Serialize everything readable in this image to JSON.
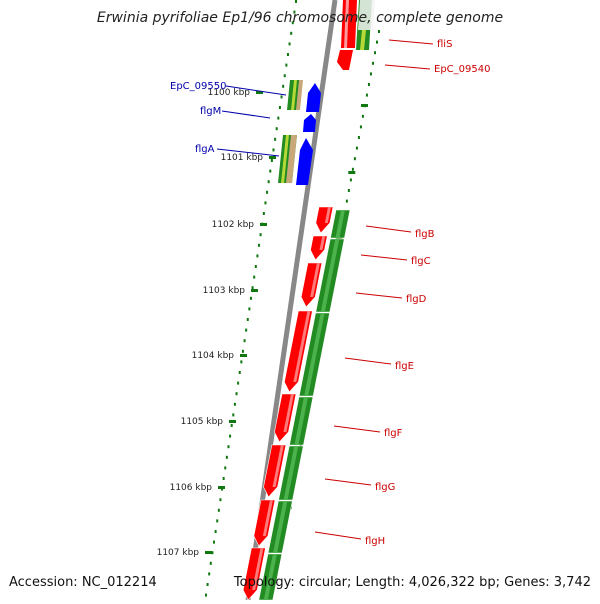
{
  "title": "Erwinia pyrifoliae Ep1/96 chromosome, complete genome",
  "accession": "Accession: NC_012214",
  "topology": "Topology: circular; Length: 4,026,322 bp; Genes: 3,742",
  "kbp_labels": [
    "1100 kbp",
    "1101 kbp",
    "1102 kbp",
    "1103 kbp",
    "1104 kbp",
    "1105 kbp",
    "1106 kbp",
    "1107 kbp"
  ],
  "genes_left": [
    "EpC_09550",
    "flgM",
    "flgA"
  ],
  "genes_right": [
    "fliS",
    "EpC_09540",
    "flgB",
    "flgC",
    "flgD",
    "flgE",
    "flgF",
    "flgG",
    "flgH"
  ],
  "colors": {
    "reverse_gene": "#ff0000",
    "forward_cds": "#228b22",
    "left_label": "#0000aa",
    "right_label": "#cc0000",
    "ruler_ticks": "#117711",
    "backbone": "#888888",
    "left_gene": "#0000ff"
  }
}
